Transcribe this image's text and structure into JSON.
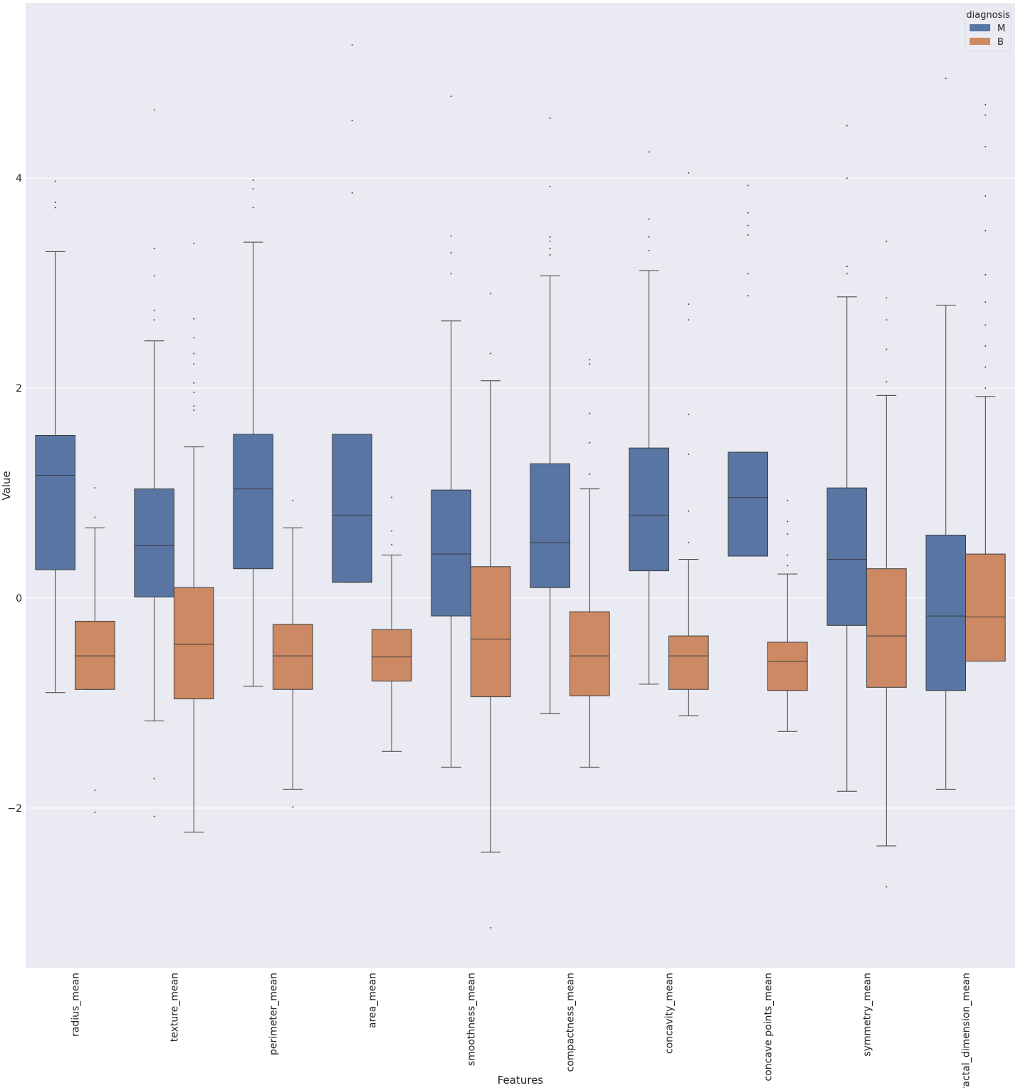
{
  "chart_data": {
    "type": "box",
    "xlabel": "Features",
    "ylabel": "Value",
    "ylim": [
      -3.52,
      5.67
    ],
    "yticks": [
      -2,
      0,
      2,
      4
    ],
    "grid": true,
    "legend": {
      "title": "diagnosis",
      "placement": "top-right",
      "entries": [
        "M",
        "B"
      ]
    },
    "categories": [
      "radius_mean",
      "texture_mean",
      "perimeter_mean",
      "area_mean",
      "smoothness_mean",
      "compactness_mean",
      "concavity_mean",
      "concave points_mean",
      "symmetry_mean",
      "fractal_dimension_mean"
    ],
    "series": [
      {
        "name": "M",
        "color": "#5875a4",
        "boxes": [
          {
            "whislo": -0.9,
            "q1": 0.27,
            "med": 1.17,
            "q3": 1.55,
            "whishi": 3.3,
            "fliers": [
              3.72,
              3.77,
              3.97
            ]
          },
          {
            "whislo": -1.17,
            "q1": 0.01,
            "med": 0.5,
            "q3": 1.04,
            "whishi": 2.45,
            "fliers": [
              -2.08,
              -1.72,
              2.65,
              2.74,
              3.07,
              3.33,
              4.65
            ]
          },
          {
            "whislo": -0.84,
            "q1": 0.28,
            "med": 1.04,
            "q3": 1.56,
            "whishi": 3.39,
            "fliers": [
              3.72,
              3.9,
              3.98
            ]
          },
          {
            "whislo": 0.15,
            "q1": 0.15,
            "med": 0.79,
            "q3": 1.56,
            "whishi": 1.56,
            "fliers": [
              3.86,
              4.55,
              5.27
            ]
          },
          {
            "whislo": -1.61,
            "q1": -0.17,
            "med": 0.42,
            "q3": 1.03,
            "whishi": 2.64,
            "fliers": [
              3.09,
              3.29,
              3.45,
              4.78
            ]
          },
          {
            "whislo": -1.1,
            "q1": 0.1,
            "med": 0.53,
            "q3": 1.28,
            "whishi": 3.07,
            "fliers": [
              3.27,
              3.33,
              3.4,
              3.44,
              3.92,
              4.57
            ]
          },
          {
            "whislo": -0.82,
            "q1": 0.26,
            "med": 0.79,
            "q3": 1.43,
            "whishi": 3.12,
            "fliers": [
              3.31,
              3.44,
              3.61,
              4.25
            ]
          },
          {
            "whislo": 0.4,
            "q1": 0.4,
            "med": 0.96,
            "q3": 1.39,
            "whishi": 1.39,
            "fliers": [
              2.88,
              3.09,
              3.46,
              3.55,
              3.67,
              3.93
            ]
          },
          {
            "whislo": -1.84,
            "q1": -0.26,
            "med": 0.37,
            "q3": 1.05,
            "whishi": 2.87,
            "fliers": [
              3.09,
              3.16,
              4.0,
              4.5
            ]
          },
          {
            "whislo": -1.82,
            "q1": -0.88,
            "med": -0.17,
            "q3": 0.6,
            "whishi": 2.79,
            "fliers": [
              4.95
            ]
          }
        ]
      },
      {
        "name": "B",
        "color": "#cc8963",
        "boxes": [
          {
            "whislo": -0.87,
            "q1": -0.87,
            "med": -0.55,
            "q3": -0.22,
            "whishi": 0.67,
            "fliers": [
              -2.04,
              -1.83,
              0.77,
              1.05
            ]
          },
          {
            "whislo": -2.23,
            "q1": -0.96,
            "med": -0.44,
            "q3": 0.1,
            "whishi": 1.44,
            "fliers": [
              1.79,
              1.83,
              1.96,
              2.05,
              2.23,
              2.33,
              2.48,
              2.66,
              3.38
            ]
          },
          {
            "whislo": -1.82,
            "q1": -0.87,
            "med": -0.55,
            "q3": -0.25,
            "whishi": 0.67,
            "fliers": [
              -1.99,
              0.93
            ]
          },
          {
            "whislo": -1.46,
            "q1": -0.79,
            "med": -0.56,
            "q3": -0.3,
            "whishi": 0.41,
            "fliers": [
              0.51,
              0.64,
              0.96
            ]
          },
          {
            "whislo": -2.42,
            "q1": -0.94,
            "med": -0.39,
            "q3": 0.3,
            "whishi": 2.07,
            "fliers": [
              -3.14,
              2.33,
              2.9
            ]
          },
          {
            "whislo": -1.61,
            "q1": -0.93,
            "med": -0.55,
            "q3": -0.13,
            "whishi": 1.04,
            "fliers": [
              1.18,
              1.48,
              1.76,
              2.23,
              2.27
            ]
          },
          {
            "whislo": -1.12,
            "q1": -0.87,
            "med": -0.55,
            "q3": -0.36,
            "whishi": 0.37,
            "fliers": [
              0.53,
              0.83,
              1.37,
              1.75,
              2.65,
              2.8,
              4.05
            ]
          },
          {
            "whislo": -1.27,
            "q1": -0.88,
            "med": -0.6,
            "q3": -0.42,
            "whishi": 0.23,
            "fliers": [
              0.31,
              0.41,
              0.61,
              0.73,
              0.93
            ]
          },
          {
            "whislo": -2.36,
            "q1": -0.85,
            "med": -0.36,
            "q3": 0.28,
            "whishi": 1.93,
            "fliers": [
              -2.75,
              2.06,
              2.37,
              2.65,
              2.86,
              3.4
            ]
          },
          {
            "whislo": -0.6,
            "q1": -0.6,
            "med": -0.18,
            "q3": 0.42,
            "whishi": 1.92,
            "fliers": [
              2.0,
              2.2,
              2.4,
              2.6,
              2.82,
              3.08,
              3.5,
              3.83,
              4.3,
              4.6,
              4.7
            ]
          }
        ]
      }
    ]
  }
}
